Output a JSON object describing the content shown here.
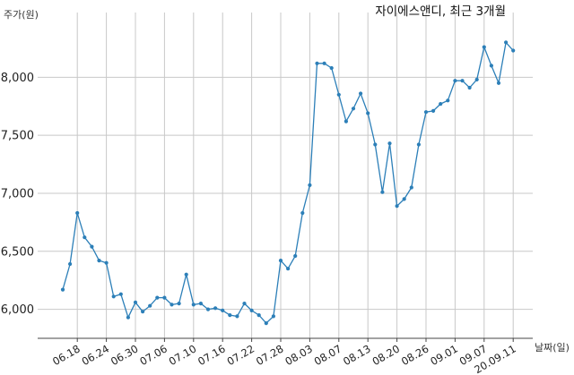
{
  "chart_data": {
    "type": "line",
    "title": "자이에스앤디, 최근 3개월",
    "ylabel": "주가(원)",
    "xlabel": "날짜(일)",
    "ylim": [
      5750,
      8450
    ],
    "yticks": [
      6000,
      6500,
      7000,
      7500,
      8000
    ],
    "ytick_labels": [
      "6,000",
      "6,500",
      "7,000",
      "7,500",
      "8,000"
    ],
    "grid": true,
    "line_color": "#2c7fb8",
    "x_tick_labels": [
      "06.18",
      "06.24",
      "06.30",
      "07.06",
      "07.10",
      "07.16",
      "07.22",
      "07.28",
      "08.03",
      "08.07",
      "08.13",
      "08.20",
      "08.26",
      "09.01",
      "09.07",
      "20.09.11"
    ],
    "x_tick_indices": [
      2,
      6,
      10,
      14,
      18,
      22,
      26,
      30,
      34,
      38,
      42,
      46,
      50,
      54,
      58,
      62
    ],
    "values": [
      6170,
      6390,
      6830,
      6620,
      6540,
      6420,
      6400,
      6110,
      6130,
      5930,
      6060,
      5980,
      6030,
      6100,
      6100,
      6040,
      6050,
      6300,
      6040,
      6050,
      6000,
      6010,
      5990,
      5950,
      5940,
      6050,
      5990,
      5950,
      5880,
      5940,
      6420,
      6350,
      6460,
      6830,
      7070,
      8120,
      8120,
      8080,
      7850,
      7620,
      7730,
      7860,
      7690,
      7420,
      7010,
      7430,
      6890,
      6950,
      7050,
      7420,
      7700,
      7710,
      7770,
      7800,
      7970,
      7970,
      7910,
      7980,
      8260,
      8100,
      7950,
      8300,
      8230
    ]
  }
}
